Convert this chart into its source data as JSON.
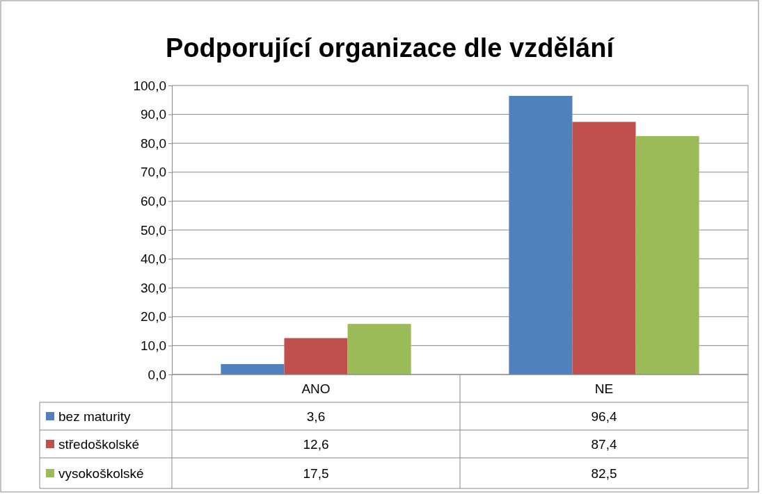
{
  "chart_data": {
    "type": "bar",
    "title": "Podporující organizace dle vzdělání",
    "categories": [
      "ANO",
      "NE"
    ],
    "series": [
      {
        "name": "bez maturity",
        "color": "#4f81bd",
        "values": [
          3.6,
          96.4
        ],
        "value_labels": [
          "3,6",
          "96,4"
        ]
      },
      {
        "name": "středoškolské",
        "color": "#c0504d",
        "values": [
          12.6,
          87.4
        ],
        "value_labels": [
          "12,6",
          "87,4"
        ]
      },
      {
        "name": "vysokoškolské",
        "color": "#9bbb59",
        "values": [
          17.5,
          82.5
        ],
        "value_labels": [
          "17,5",
          "82,5"
        ]
      }
    ],
    "ylim": [
      0,
      100
    ],
    "yticks": [
      {
        "value": 0,
        "label": "0,0"
      },
      {
        "value": 10,
        "label": "10,0"
      },
      {
        "value": 20,
        "label": "20,0"
      },
      {
        "value": 30,
        "label": "30,0"
      },
      {
        "value": 40,
        "label": "40,0"
      },
      {
        "value": 50,
        "label": "50,0"
      },
      {
        "value": 60,
        "label": "60,0"
      },
      {
        "value": 70,
        "label": "70,0"
      },
      {
        "value": 80,
        "label": "80,0"
      },
      {
        "value": 90,
        "label": "90,0"
      },
      {
        "value": 100,
        "label": "100,0"
      }
    ],
    "grid": "y",
    "legend": "bottom"
  }
}
